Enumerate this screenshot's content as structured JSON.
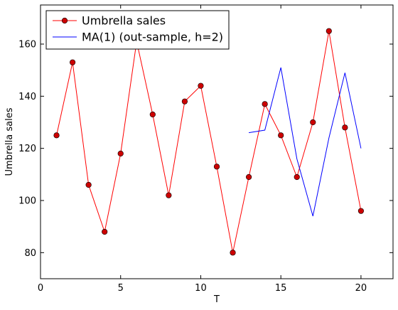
{
  "chart_data": {
    "type": "line",
    "title": "",
    "xlabel": "T",
    "ylabel": "Umbrella sales",
    "xlim": [
      0,
      22
    ],
    "ylim": [
      70,
      175
    ],
    "xticks": [
      0,
      5,
      10,
      15,
      20
    ],
    "yticks": [
      80,
      100,
      120,
      140,
      160
    ],
    "grid": false,
    "legend_position": "top-left",
    "series": [
      {
        "name": "Umbrella sales",
        "color": "#ff0000",
        "marker": "circle",
        "marker_color": "#cc0000",
        "x": [
          1,
          2,
          3,
          4,
          5,
          6,
          7,
          8,
          9,
          10,
          11,
          12,
          13,
          14,
          15,
          16,
          17,
          18,
          19,
          20
        ],
        "values": [
          125,
          153,
          106,
          88,
          118,
          161,
          133,
          102,
          138,
          144,
          113,
          80,
          109,
          137,
          125,
          109,
          130,
          165,
          128,
          96
        ]
      },
      {
        "name": "MA(1) (out-sample, h=2)",
        "color": "#0000ff",
        "marker": "none",
        "x": [
          13,
          14,
          15,
          16,
          17,
          18,
          19,
          20
        ],
        "values": [
          126,
          127,
          151,
          116,
          94,
          124,
          149,
          120
        ]
      }
    ]
  }
}
